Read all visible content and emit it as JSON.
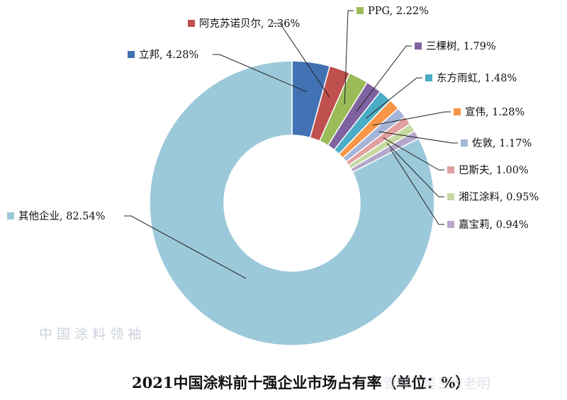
{
  "chart_data": {
    "type": "pie",
    "title": "2021中国涂料前十强企业市场占有率（单位：%）",
    "slices": [
      {
        "name": "立邦",
        "value": 4.28,
        "label": "立邦, 4.28%",
        "color": "#4372b4"
      },
      {
        "name": "阿克苏诺贝尔",
        "value": 2.36,
        "label": "阿克苏诺贝尔, 2.36%",
        "color": "#c0504d"
      },
      {
        "name": "PPG",
        "value": 2.22,
        "label": "PPG, 2.22%",
        "color": "#9bbb59"
      },
      {
        "name": "三棵树",
        "value": 1.79,
        "label": "三棵树, 1.79%",
        "color": "#7f63a1"
      },
      {
        "name": "东方雨虹",
        "value": 1.48,
        "label": "东方雨虹, 1.48%",
        "color": "#4bacc6"
      },
      {
        "name": "宣伟",
        "value": 1.28,
        "label": "宣伟, 1.28%",
        "color": "#f79646"
      },
      {
        "name": "佐敦",
        "value": 1.17,
        "label": "佐敦, 1.17%",
        "color": "#a5b5d8"
      },
      {
        "name": "巴斯夫",
        "value": 1.0,
        "label": "巴斯夫, 1.00%",
        "color": "#e1a09f"
      },
      {
        "name": "湘江涂料",
        "value": 0.95,
        "label": "湘江涂料, 0.95%",
        "color": "#c5d9a0"
      },
      {
        "name": "嘉宝莉",
        "value": 0.94,
        "label": "嘉宝莉, 0.94%",
        "color": "#b5a6cb"
      },
      {
        "name": "其他企业",
        "value": 82.54,
        "label": "其他企业, 82.54%",
        "color": "#9cc9d9"
      }
    ]
  },
  "watermark": "中 国 涂 料 领 袖",
  "source_mark": "雪球：吴三大老明"
}
